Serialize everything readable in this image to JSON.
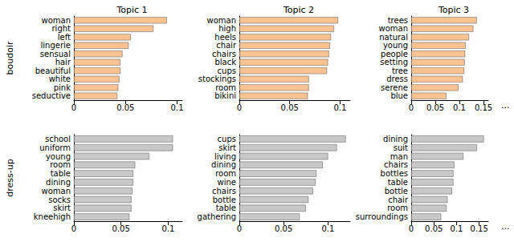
{
  "chart_data": [
    {
      "type": "bar",
      "orientation": "horizontal",
      "title": "Topic 1",
      "color": "#f9c291",
      "grid": false,
      "categories": [
        "woman",
        "right",
        "left",
        "lingerie",
        "sensual",
        "hair",
        "beautiful",
        "white",
        "pink",
        "seductive"
      ],
      "values": [
        0.09,
        0.077,
        0.055,
        0.053,
        0.047,
        0.045,
        0.045,
        0.044,
        0.043,
        0.042
      ],
      "xlim": [
        0,
        0.105
      ],
      "xticks": [
        0,
        0.05,
        0.1
      ]
    },
    {
      "type": "bar",
      "orientation": "horizontal",
      "title": "Topic 2",
      "color": "#f9c291",
      "grid": false,
      "categories": [
        "woman",
        "high",
        "heels",
        "chair",
        "chairs",
        "black",
        "cups",
        "stockings",
        "room",
        "bikini"
      ],
      "values": [
        0.098,
        0.094,
        0.091,
        0.09,
        0.089,
        0.088,
        0.087,
        0.069,
        0.069,
        0.068
      ],
      "xlim": [
        0,
        0.11
      ],
      "xticks": [
        0,
        0.05,
        0.1
      ]
    },
    {
      "type": "bar",
      "orientation": "horizontal",
      "title": "Topic 3",
      "color": "#f9c291",
      "grid": false,
      "categories": [
        "trees",
        "woman",
        "natural",
        "young",
        "people",
        "setting",
        "tree",
        "dress",
        "serene",
        "blue"
      ],
      "values": [
        0.136,
        0.129,
        0.12,
        0.113,
        0.112,
        0.111,
        0.11,
        0.107,
        0.098,
        0.073
      ],
      "xlim": [
        0,
        0.16
      ],
      "xticks": [
        0,
        0.05,
        0.1,
        0.15
      ]
    },
    {
      "type": "bar",
      "orientation": "horizontal",
      "color": "#c8c8c8",
      "grid": false,
      "categories": [
        "school",
        "uniform",
        "young",
        "room",
        "table",
        "dining",
        "woman",
        "socks",
        "skirt",
        "kneehigh"
      ],
      "values": [
        0.105,
        0.105,
        0.08,
        0.065,
        0.063,
        0.063,
        0.062,
        0.061,
        0.061,
        0.059
      ],
      "xlim": [
        0,
        0.115
      ],
      "xticks": [
        0,
        0.05,
        0.1
      ]
    },
    {
      "type": "bar",
      "orientation": "horizontal",
      "color": "#c8c8c8",
      "grid": false,
      "categories": [
        "cups",
        "skirt",
        "living",
        "dining",
        "room",
        "wine",
        "chairs",
        "bottle",
        "table",
        "gathering"
      ],
      "values": [
        0.12,
        0.11,
        0.1,
        0.094,
        0.087,
        0.086,
        0.083,
        0.078,
        0.075,
        0.068
      ],
      "xlim": [
        0,
        0.125
      ],
      "xticks": [
        0,
        0.05,
        0.1
      ]
    },
    {
      "type": "bar",
      "orientation": "horizontal",
      "color": "#c8c8c8",
      "grid": false,
      "categories": [
        "dining",
        "suit",
        "man",
        "chairs",
        "bottles",
        "table",
        "bottle",
        "chair",
        "room",
        "surroundings"
      ],
      "values": [
        0.16,
        0.145,
        0.115,
        0.095,
        0.093,
        0.093,
        0.09,
        0.08,
        0.078,
        0.066
      ],
      "xlim": [
        0,
        0.17
      ],
      "xticks": [
        0,
        0.05,
        0.1,
        0.15
      ]
    }
  ],
  "row_labels": [
    "boudoir",
    "dress-up"
  ],
  "continuation": [
    "...",
    "..."
  ]
}
